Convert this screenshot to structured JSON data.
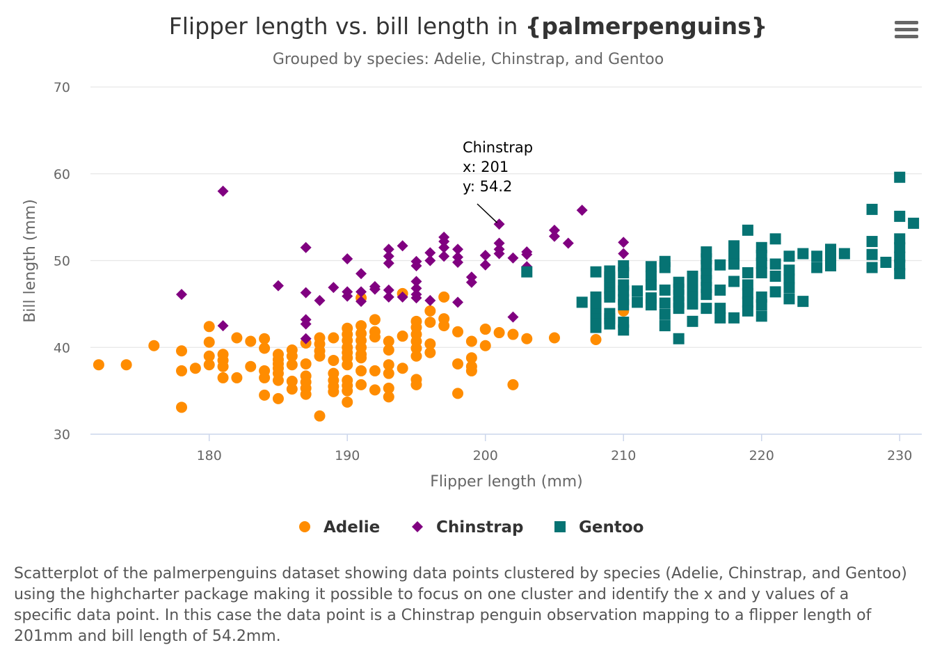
{
  "chart_data": {
    "type": "scatter",
    "title_main": "Flipper length vs. bill length in ",
    "title_bold": "{palmerpenguins}",
    "subtitle": "Grouped by species: Adelie, Chinstrap, and Gentoo",
    "xlabel": "Flipper length (mm)",
    "ylabel": "Bill length (mm)",
    "xlim": [
      171.4,
      231.6
    ],
    "ylim": [
      30,
      70
    ],
    "xticks": [
      180,
      190,
      200,
      210,
      220,
      230
    ],
    "yticks": [
      30,
      40,
      50,
      60,
      70
    ],
    "grid": "horizontal",
    "legend_position": "bottom",
    "annotation": {
      "series": "Chinstrap",
      "x_label": "x: 201",
      "y_label": "y: 54.2",
      "x": 201,
      "y": 54.2
    },
    "series": [
      {
        "name": "Adelie",
        "color": "#FF8C00",
        "marker": "circle",
        "points": [
          [
            172,
            38.0
          ],
          [
            174,
            38.0
          ],
          [
            176,
            40.2
          ],
          [
            178,
            39.6
          ],
          [
            178,
            37.3
          ],
          [
            178,
            33.1
          ],
          [
            179,
            37.6
          ],
          [
            180,
            42.4
          ],
          [
            180,
            40.6
          ],
          [
            180,
            39.0
          ],
          [
            180,
            38.0
          ],
          [
            181,
            39.2
          ],
          [
            181,
            38.5
          ],
          [
            181,
            37.8
          ],
          [
            181,
            36.5
          ],
          [
            182,
            41.1
          ],
          [
            182,
            36.5
          ],
          [
            183,
            40.7
          ],
          [
            183,
            37.8
          ],
          [
            184,
            41.0
          ],
          [
            184,
            39.9
          ],
          [
            184,
            37.3
          ],
          [
            184,
            36.5
          ],
          [
            184,
            34.5
          ],
          [
            185,
            39.2
          ],
          [
            185,
            38.6
          ],
          [
            185,
            38.1
          ],
          [
            185,
            37.6
          ],
          [
            185,
            37.0
          ],
          [
            185,
            36.2
          ],
          [
            185,
            34.1
          ],
          [
            186,
            39.7
          ],
          [
            186,
            39.0
          ],
          [
            186,
            38.0
          ],
          [
            186,
            36.1
          ],
          [
            186,
            35.2
          ],
          [
            187,
            40.5
          ],
          [
            187,
            38.1
          ],
          [
            187,
            36.7
          ],
          [
            187,
            36.0
          ],
          [
            187,
            35.3
          ],
          [
            187,
            34.6
          ],
          [
            188,
            41.1
          ],
          [
            188,
            40.4
          ],
          [
            188,
            39.6
          ],
          [
            188,
            39.0
          ],
          [
            188,
            32.1
          ],
          [
            189,
            41.1
          ],
          [
            189,
            38.5
          ],
          [
            189,
            37.0
          ],
          [
            189,
            36.2
          ],
          [
            189,
            35.5
          ],
          [
            189,
            34.9
          ],
          [
            190,
            42.2
          ],
          [
            190,
            41.5
          ],
          [
            190,
            40.8
          ],
          [
            190,
            40.0
          ],
          [
            190,
            39.4
          ],
          [
            190,
            38.8
          ],
          [
            190,
            38.0
          ],
          [
            190,
            36.2
          ],
          [
            190,
            35.6
          ],
          [
            190,
            35.0
          ],
          [
            190,
            33.7
          ],
          [
            191,
            45.7
          ],
          [
            191,
            42.5
          ],
          [
            191,
            41.6
          ],
          [
            191,
            40.8
          ],
          [
            191,
            40.0
          ],
          [
            191,
            39.2
          ],
          [
            191,
            38.8
          ],
          [
            191,
            37.3
          ],
          [
            191,
            35.7
          ],
          [
            192,
            43.2
          ],
          [
            192,
            41.8
          ],
          [
            192,
            41.2
          ],
          [
            192,
            37.3
          ],
          [
            192,
            35.1
          ],
          [
            193,
            40.7
          ],
          [
            193,
            39.7
          ],
          [
            193,
            38.0
          ],
          [
            193,
            37.0
          ],
          [
            193,
            35.3
          ],
          [
            193,
            34.3
          ],
          [
            194,
            46.2
          ],
          [
            194,
            41.3
          ],
          [
            194,
            37.6
          ],
          [
            195,
            43.0
          ],
          [
            195,
            42.3
          ],
          [
            195,
            41.5
          ],
          [
            195,
            40.7
          ],
          [
            195,
            39.9
          ],
          [
            195,
            39.0
          ],
          [
            195,
            36.3
          ],
          [
            195,
            35.7
          ],
          [
            196,
            44.2
          ],
          [
            196,
            42.9
          ],
          [
            196,
            40.4
          ],
          [
            196,
            39.4
          ],
          [
            197,
            45.8
          ],
          [
            197,
            43.3
          ],
          [
            197,
            42.5
          ],
          [
            198,
            41.8
          ],
          [
            198,
            38.1
          ],
          [
            198,
            34.7
          ],
          [
            199,
            40.7
          ],
          [
            199,
            38.8
          ],
          [
            199,
            37.8
          ],
          [
            199,
            37.3
          ],
          [
            200,
            42.1
          ],
          [
            200,
            40.2
          ],
          [
            201,
            41.7
          ],
          [
            202,
            41.5
          ],
          [
            202,
            35.7
          ],
          [
            203,
            41.0
          ],
          [
            205,
            41.1
          ],
          [
            208,
            40.9
          ],
          [
            210,
            44.2
          ]
        ]
      },
      {
        "name": "Chinstrap",
        "color": "#800080",
        "marker": "diamond",
        "points": [
          [
            178,
            46.1
          ],
          [
            181,
            58.0
          ],
          [
            181,
            42.5
          ],
          [
            185,
            47.1
          ],
          [
            187,
            51.5
          ],
          [
            187,
            46.3
          ],
          [
            187,
            43.2
          ],
          [
            187,
            42.7
          ],
          [
            187,
            41.0
          ],
          [
            188,
            45.4
          ],
          [
            189,
            46.9
          ],
          [
            190,
            50.2
          ],
          [
            190,
            46.4
          ],
          [
            190,
            45.9
          ],
          [
            191,
            48.5
          ],
          [
            191,
            46.4
          ],
          [
            191,
            45.3
          ],
          [
            192,
            47.0
          ],
          [
            192,
            46.7
          ],
          [
            193,
            51.3
          ],
          [
            193,
            50.5
          ],
          [
            193,
            49.7
          ],
          [
            193,
            46.6
          ],
          [
            193,
            45.8
          ],
          [
            194,
            51.7
          ],
          [
            194,
            45.8
          ],
          [
            195,
            49.9
          ],
          [
            195,
            49.4
          ],
          [
            195,
            47.6
          ],
          [
            195,
            46.8
          ],
          [
            195,
            46.1
          ],
          [
            195,
            45.7
          ],
          [
            196,
            50.9
          ],
          [
            196,
            50.0
          ],
          [
            196,
            45.4
          ],
          [
            197,
            52.7
          ],
          [
            197,
            52.2
          ],
          [
            197,
            51.5
          ],
          [
            197,
            50.5
          ],
          [
            198,
            51.3
          ],
          [
            198,
            50.4
          ],
          [
            198,
            49.8
          ],
          [
            198,
            45.2
          ],
          [
            199,
            48.1
          ],
          [
            199,
            47.5
          ],
          [
            200,
            50.6
          ],
          [
            200,
            49.5
          ],
          [
            201,
            54.2
          ],
          [
            201,
            52.0
          ],
          [
            201,
            51.3
          ],
          [
            201,
            50.8
          ],
          [
            202,
            50.3
          ],
          [
            202,
            43.5
          ],
          [
            203,
            51.0
          ],
          [
            203,
            50.7
          ],
          [
            203,
            49.3
          ],
          [
            205,
            53.5
          ],
          [
            205,
            52.8
          ],
          [
            206,
            52.0
          ],
          [
            207,
            55.8
          ],
          [
            210,
            52.1
          ],
          [
            210,
            50.8
          ],
          [
            210,
            49.3
          ]
        ]
      },
      {
        "name": "Gentoo",
        "color": "#067373",
        "marker": "square",
        "points": [
          [
            203,
            48.7
          ],
          [
            207,
            45.2
          ],
          [
            208,
            48.7
          ],
          [
            208,
            45.8
          ],
          [
            208,
            45.1
          ],
          [
            208,
            44.5
          ],
          [
            208,
            43.8
          ],
          [
            208,
            43.3
          ],
          [
            208,
            42.7
          ],
          [
            208,
            42.3
          ],
          [
            209,
            48.8
          ],
          [
            209,
            48.1
          ],
          [
            209,
            47.5
          ],
          [
            209,
            46.8
          ],
          [
            209,
            46.2
          ],
          [
            209,
            45.8
          ],
          [
            209,
            43.9
          ],
          [
            209,
            43.3
          ],
          [
            209,
            42.7
          ],
          [
            210,
            49.4
          ],
          [
            210,
            48.6
          ],
          [
            210,
            47.2
          ],
          [
            210,
            46.5
          ],
          [
            210,
            45.5
          ],
          [
            210,
            44.9
          ],
          [
            210,
            42.9
          ],
          [
            210,
            42.0
          ],
          [
            211,
            46.5
          ],
          [
            211,
            45.2
          ],
          [
            212,
            49.3
          ],
          [
            212,
            48.2
          ],
          [
            212,
            47.2
          ],
          [
            212,
            45.7
          ],
          [
            212,
            44.9
          ],
          [
            213,
            49.9
          ],
          [
            213,
            49.2
          ],
          [
            213,
            46.6
          ],
          [
            213,
            45.1
          ],
          [
            213,
            43.8
          ],
          [
            213,
            42.5
          ],
          [
            214,
            47.5
          ],
          [
            214,
            46.7
          ],
          [
            214,
            46.0
          ],
          [
            214,
            45.2
          ],
          [
            214,
            44.5
          ],
          [
            214,
            41.0
          ],
          [
            215,
            48.2
          ],
          [
            215,
            47.4
          ],
          [
            215,
            46.6
          ],
          [
            215,
            45.8
          ],
          [
            215,
            45.0
          ],
          [
            215,
            43.0
          ],
          [
            216,
            51.0
          ],
          [
            216,
            50.2
          ],
          [
            216,
            49.4
          ],
          [
            216,
            48.5
          ],
          [
            216,
            47.7
          ],
          [
            216,
            46.9
          ],
          [
            216,
            46.1
          ],
          [
            216,
            44.5
          ],
          [
            217,
            49.5
          ],
          [
            217,
            46.6
          ],
          [
            217,
            44.5
          ],
          [
            217,
            43.4
          ],
          [
            218,
            51.7
          ],
          [
            218,
            50.5
          ],
          [
            218,
            49.6
          ],
          [
            218,
            47.6
          ],
          [
            218,
            43.4
          ],
          [
            219,
            53.5
          ],
          [
            219,
            48.6
          ],
          [
            219,
            47.2
          ],
          [
            219,
            46.2
          ],
          [
            219,
            45.2
          ],
          [
            219,
            44.2
          ],
          [
            220,
            51.5
          ],
          [
            220,
            50.6
          ],
          [
            220,
            49.7
          ],
          [
            220,
            48.6
          ],
          [
            220,
            45.8
          ],
          [
            220,
            44.9
          ],
          [
            220,
            43.6
          ],
          [
            221,
            52.5
          ],
          [
            221,
            49.6
          ],
          [
            221,
            48.2
          ],
          [
            221,
            46.4
          ],
          [
            222,
            50.5
          ],
          [
            222,
            48.9
          ],
          [
            222,
            47.9
          ],
          [
            222,
            46.9
          ],
          [
            222,
            45.6
          ],
          [
            223,
            50.8
          ],
          [
            223,
            45.3
          ],
          [
            224,
            50.5
          ],
          [
            224,
            49.2
          ],
          [
            225,
            51.3
          ],
          [
            225,
            50.3
          ],
          [
            225,
            49.4
          ],
          [
            226,
            50.8
          ],
          [
            228,
            55.9
          ],
          [
            228,
            52.2
          ],
          [
            228,
            50.7
          ],
          [
            228,
            49.2
          ],
          [
            229,
            49.8
          ],
          [
            230,
            59.6
          ],
          [
            230,
            55.1
          ],
          [
            230,
            52.5
          ],
          [
            230,
            51.5
          ],
          [
            230,
            50.4
          ],
          [
            230,
            49.5
          ],
          [
            230,
            48.5
          ],
          [
            231,
            54.3
          ]
        ]
      }
    ]
  },
  "caption": "Scatterplot of the palmerpenguins dataset showing data points clustered by species (Adelie, Chinstrap, and Gentoo) using the highcharter package making it possible to focus on one cluster and identify the x and y values of a specific data point. In this case the data point is a Chinstrap penguin observation mapping to a flipper length of 201mm and bill length of 54.2mm.",
  "menu": {
    "icon": "hamburger-menu-icon"
  }
}
